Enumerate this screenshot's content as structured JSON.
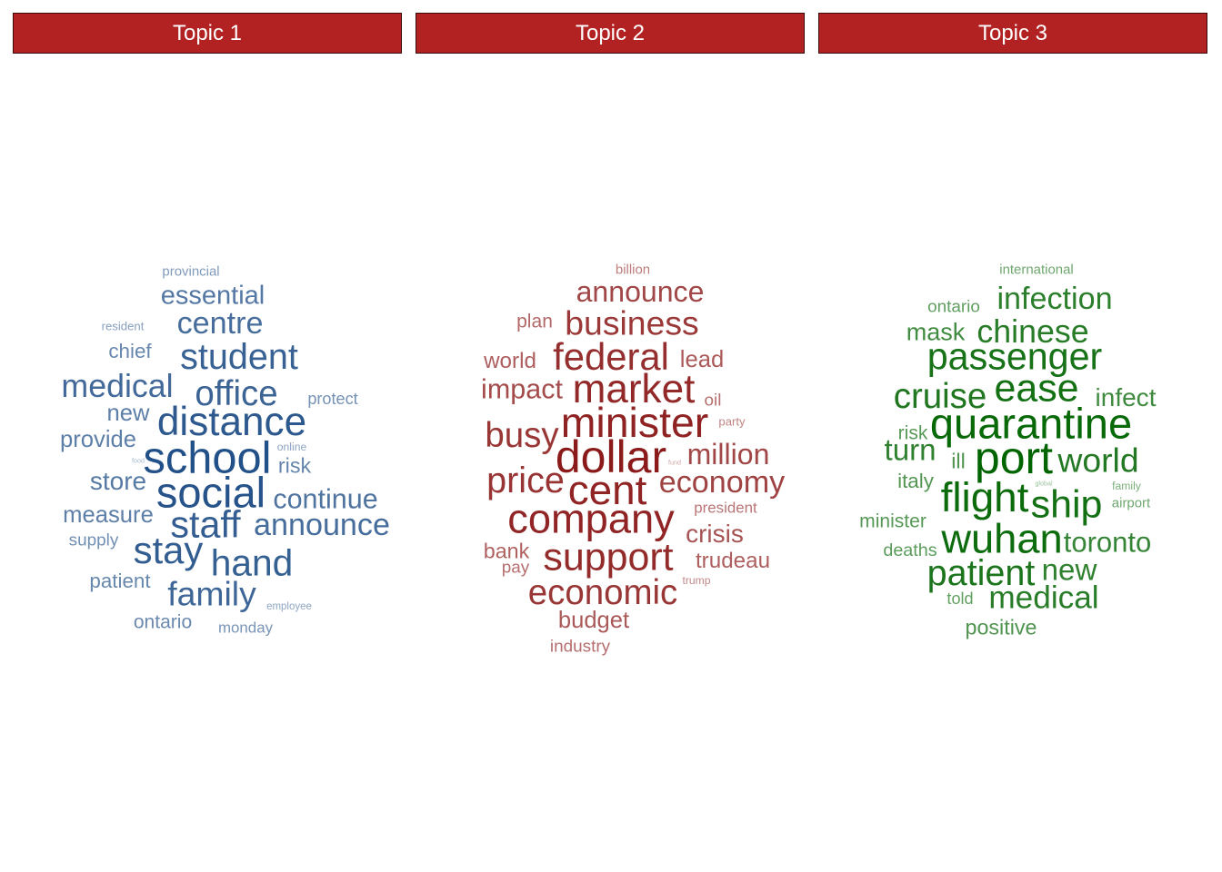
{
  "topics": [
    {
      "title": "Topic 1",
      "color": "#1f4e86",
      "words": [
        {
          "text": "provincial",
          "weight": 0.3
        },
        {
          "text": "essential",
          "weight": 0.62
        },
        {
          "text": "resident",
          "weight": 0.25
        },
        {
          "text": "centre",
          "weight": 0.72
        },
        {
          "text": "chief",
          "weight": 0.48
        },
        {
          "text": "student",
          "weight": 0.82
        },
        {
          "text": "medical",
          "weight": 0.75
        },
        {
          "text": "office",
          "weight": 0.8
        },
        {
          "text": "protect",
          "weight": 0.38
        },
        {
          "text": "new",
          "weight": 0.55
        },
        {
          "text": "distance",
          "weight": 0.9
        },
        {
          "text": "provide",
          "weight": 0.55
        },
        {
          "text": "online",
          "weight": 0.22
        },
        {
          "text": "food",
          "weight": 0.02
        },
        {
          "text": "school",
          "weight": 0.98
        },
        {
          "text": "risk",
          "weight": 0.5
        },
        {
          "text": "store",
          "weight": 0.6
        },
        {
          "text": "social",
          "weight": 0.95
        },
        {
          "text": "continue",
          "weight": 0.65
        },
        {
          "text": "measure",
          "weight": 0.55
        },
        {
          "text": "staff",
          "weight": 0.85
        },
        {
          "text": "announce",
          "weight": 0.72
        },
        {
          "text": "supply",
          "weight": 0.4
        },
        {
          "text": "stay",
          "weight": 0.86
        },
        {
          "text": "hand",
          "weight": 0.84
        },
        {
          "text": "patient",
          "weight": 0.48
        },
        {
          "text": "family",
          "weight": 0.78
        },
        {
          "text": "employee",
          "weight": 0.2
        },
        {
          "text": "ontario",
          "weight": 0.45
        },
        {
          "text": "monday",
          "weight": 0.35
        }
      ]
    },
    {
      "title": "Topic 2",
      "color": "#8b1a1a",
      "words": [
        {
          "text": "billion",
          "weight": 0.3
        },
        {
          "text": "announce",
          "weight": 0.68
        },
        {
          "text": "plan",
          "weight": 0.45
        },
        {
          "text": "business",
          "weight": 0.78
        },
        {
          "text": "world",
          "weight": 0.52
        },
        {
          "text": "federal",
          "weight": 0.86
        },
        {
          "text": "lead",
          "weight": 0.55
        },
        {
          "text": "impact",
          "weight": 0.65
        },
        {
          "text": "market",
          "weight": 0.9
        },
        {
          "text": "oil",
          "weight": 0.4
        },
        {
          "text": "busy",
          "weight": 0.8
        },
        {
          "text": "minister",
          "weight": 0.94
        },
        {
          "text": "party",
          "weight": 0.25
        },
        {
          "text": "dollar",
          "weight": 1.0
        },
        {
          "text": "fund",
          "weight": 0.02
        },
        {
          "text": "million",
          "weight": 0.68
        },
        {
          "text": "price",
          "weight": 0.82
        },
        {
          "text": "cent",
          "weight": 0.93
        },
        {
          "text": "economy",
          "weight": 0.72
        },
        {
          "text": "president",
          "weight": 0.35
        },
        {
          "text": "company",
          "weight": 0.92
        },
        {
          "text": "crisis",
          "weight": 0.6
        },
        {
          "text": "bank",
          "weight": 0.5
        },
        {
          "text": "pay",
          "weight": 0.4
        },
        {
          "text": "support",
          "weight": 0.88
        },
        {
          "text": "trudeau",
          "weight": 0.52
        },
        {
          "text": "trump",
          "weight": 0.22
        },
        {
          "text": "economic",
          "weight": 0.8
        },
        {
          "text": "budget",
          "weight": 0.55
        },
        {
          "text": "industry",
          "weight": 0.4
        }
      ]
    },
    {
      "title": "Topic 3",
      "color": "#006400",
      "words": [
        {
          "text": "international",
          "weight": 0.3
        },
        {
          "text": "ontario",
          "weight": 0.4
        },
        {
          "text": "infection",
          "weight": 0.72
        },
        {
          "text": "mask",
          "weight": 0.58
        },
        {
          "text": "chinese",
          "weight": 0.75
        },
        {
          "text": "passenger",
          "weight": 0.85
        },
        {
          "text": "cruise",
          "weight": 0.8
        },
        {
          "text": "ease",
          "weight": 0.88
        },
        {
          "text": "infect",
          "weight": 0.6
        },
        {
          "text": "risk",
          "weight": 0.45
        },
        {
          "text": "quarantine",
          "weight": 0.95
        },
        {
          "text": "turn",
          "weight": 0.7
        },
        {
          "text": "ill",
          "weight": 0.5
        },
        {
          "text": "port",
          "weight": 1.0
        },
        {
          "text": "world",
          "weight": 0.78
        },
        {
          "text": "italy",
          "weight": 0.48
        },
        {
          "text": "global",
          "weight": 0.02
        },
        {
          "text": "family",
          "weight": 0.22
        },
        {
          "text": "flight",
          "weight": 0.93
        },
        {
          "text": "ship",
          "weight": 0.88
        },
        {
          "text": "airport",
          "weight": 0.3
        },
        {
          "text": "minister",
          "weight": 0.45
        },
        {
          "text": "wuhan",
          "weight": 0.92
        },
        {
          "text": "toronto",
          "weight": 0.66
        },
        {
          "text": "deaths",
          "weight": 0.42
        },
        {
          "text": "patient",
          "weight": 0.82
        },
        {
          "text": "new",
          "weight": 0.7
        },
        {
          "text": "told",
          "weight": 0.38
        },
        {
          "text": "medical",
          "weight": 0.74
        },
        {
          "text": "positive",
          "weight": 0.5
        }
      ]
    }
  ]
}
